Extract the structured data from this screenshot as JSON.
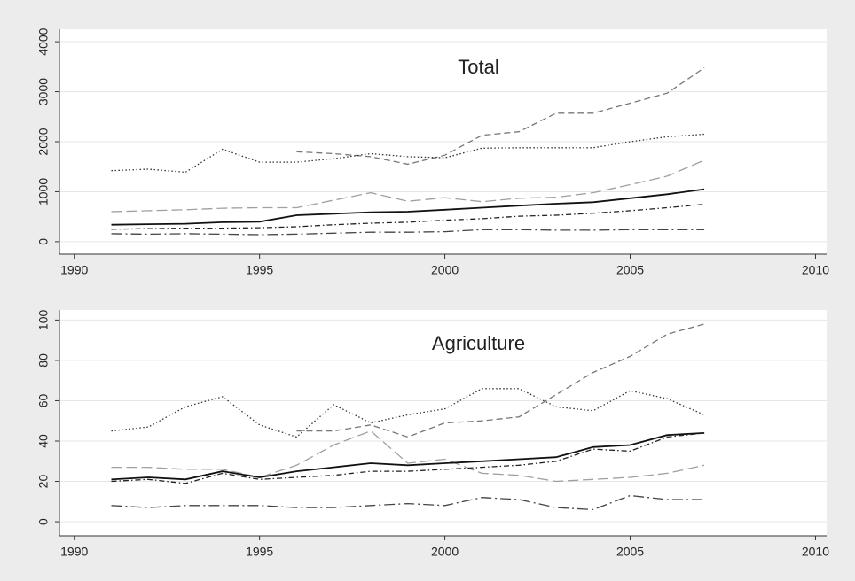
{
  "chart_data": [
    {
      "type": "line",
      "title": "Total",
      "x": [
        1991,
        1992,
        1993,
        1994,
        1995,
        1996,
        1997,
        1998,
        1999,
        2000,
        2001,
        2002,
        2003,
        2004,
        2005,
        2006,
        2007
      ],
      "xlim": [
        1989.6,
        2010.3
      ],
      "xticks": [
        1990,
        1995,
        2000,
        2005,
        2010
      ],
      "ylim": [
        -250,
        4250
      ],
      "yticks": [
        0,
        1000,
        2000,
        3000,
        4000
      ],
      "grid": true,
      "series": [
        {
          "color": "#777777",
          "style": "dashed",
          "values": [
            null,
            null,
            null,
            null,
            null,
            1800,
            1760,
            1700,
            1550,
            1730,
            2130,
            2200,
            2570,
            2570,
            2770,
            2970,
            3480
          ]
        },
        {
          "color": "#333333",
          "style": "dotted",
          "values": [
            1420,
            1450,
            1390,
            1850,
            1590,
            1590,
            1660,
            1760,
            1700,
            1680,
            1870,
            1880,
            1880,
            1880,
            2000,
            2100,
            2150
          ]
        },
        {
          "color": "#a0a0a0",
          "style": "longdash",
          "values": [
            600,
            620,
            640,
            670,
            680,
            680,
            830,
            980,
            810,
            880,
            800,
            870,
            890,
            980,
            1140,
            1310,
            1630
          ]
        },
        {
          "color": "#111111",
          "style": "solid",
          "values": [
            340,
            350,
            360,
            390,
            400,
            530,
            560,
            590,
            600,
            640,
            680,
            720,
            760,
            790,
            870,
            950,
            1050
          ]
        },
        {
          "color": "#222222",
          "style": "dashdot",
          "values": [
            250,
            260,
            270,
            270,
            280,
            300,
            340,
            370,
            390,
            430,
            460,
            510,
            530,
            570,
            620,
            680,
            750
          ]
        },
        {
          "color": "#444444",
          "style": "longdashdot",
          "values": [
            160,
            150,
            160,
            150,
            140,
            150,
            170,
            190,
            190,
            200,
            240,
            240,
            230,
            230,
            240,
            240,
            240
          ]
        }
      ]
    },
    {
      "type": "line",
      "title": "Agriculture",
      "x": [
        1991,
        1992,
        1993,
        1994,
        1995,
        1996,
        1997,
        1998,
        1999,
        2000,
        2001,
        2002,
        2003,
        2004,
        2005,
        2006,
        2007
      ],
      "xlim": [
        1989.6,
        2010.3
      ],
      "xticks": [
        1990,
        1995,
        2000,
        2005,
        2010
      ],
      "ylim": [
        -7,
        105
      ],
      "yticks": [
        0,
        20,
        40,
        60,
        80,
        100
      ],
      "grid": true,
      "series": [
        {
          "color": "#777777",
          "style": "dashed",
          "values": [
            null,
            null,
            null,
            null,
            null,
            45,
            45,
            48,
            42,
            49,
            50,
            52,
            63,
            74,
            82,
            93,
            98
          ]
        },
        {
          "color": "#333333",
          "style": "dotted",
          "values": [
            45,
            47,
            57,
            62,
            48,
            42,
            58,
            49,
            53,
            56,
            66,
            66,
            57,
            55,
            65,
            61,
            53
          ]
        },
        {
          "color": "#a0a0a0",
          "style": "longdash",
          "values": [
            27,
            27,
            26,
            26,
            22,
            28,
            38,
            45,
            29,
            31,
            24,
            23,
            20,
            21,
            22,
            24,
            28
          ]
        },
        {
          "color": "#111111",
          "style": "solid",
          "values": [
            21,
            22,
            21,
            25,
            22,
            25,
            27,
            29,
            28,
            29,
            30,
            31,
            32,
            37,
            38,
            43,
            44
          ]
        },
        {
          "color": "#222222",
          "style": "dashdot",
          "values": [
            20,
            21,
            19,
            24,
            21,
            22,
            23,
            25,
            25,
            26,
            27,
            28,
            30,
            36,
            35,
            42,
            44
          ]
        },
        {
          "color": "#444444",
          "style": "longdashdot",
          "values": [
            8,
            7,
            8,
            8,
            8,
            7,
            7,
            8,
            9,
            8,
            12,
            11,
            7,
            6,
            13,
            11,
            11
          ]
        }
      ]
    }
  ]
}
